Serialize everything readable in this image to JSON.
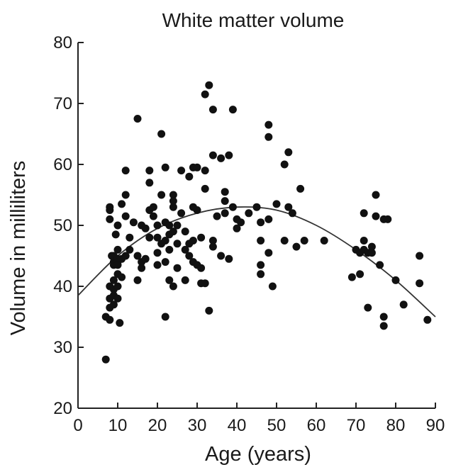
{
  "chart_data": {
    "type": "scatter",
    "title": "White matter volume",
    "xlabel": "Age (years)",
    "ylabel": "Volume in milliliters",
    "xlim": [
      0,
      90
    ],
    "ylim": [
      20,
      80
    ],
    "xticks": [
      "0",
      "10",
      "20",
      "30",
      "40",
      "50",
      "60",
      "70",
      "80",
      "90"
    ],
    "yticks": [
      "20",
      "30",
      "40",
      "50",
      "60",
      "70",
      "80"
    ],
    "grid": false,
    "colors": {
      "points": "#111111",
      "curve": "#333333",
      "axis": "#222222"
    },
    "trend_curve": {
      "type": "quadratic-fit",
      "points": [
        [
          0,
          38.5
        ],
        [
          10,
          45
        ],
        [
          20,
          49.5
        ],
        [
          30,
          52
        ],
        [
          40,
          53
        ],
        [
          50,
          52.5
        ],
        [
          60,
          50
        ],
        [
          70,
          46
        ],
        [
          80,
          41
        ],
        [
          90,
          35
        ]
      ]
    },
    "points": [
      [
        7,
        28
      ],
      [
        7,
        35
      ],
      [
        8,
        34.5
      ],
      [
        8,
        38
      ],
      [
        8,
        40
      ],
      [
        8,
        36.5
      ],
      [
        8,
        52.5
      ],
      [
        8,
        51
      ],
      [
        8,
        53
      ],
      [
        8.5,
        45
      ],
      [
        9,
        41
      ],
      [
        9,
        38.5
      ],
      [
        9,
        39.5
      ],
      [
        9,
        37
      ],
      [
        9,
        44
      ],
      [
        9,
        45
      ],
      [
        9,
        43.5
      ],
      [
        9.5,
        48.5
      ],
      [
        10,
        44.5
      ],
      [
        10,
        42
      ],
      [
        10,
        44
      ],
      [
        10,
        43.5
      ],
      [
        10,
        40
      ],
      [
        10,
        38
      ],
      [
        10,
        50
      ],
      [
        10,
        46
      ],
      [
        10.5,
        34
      ],
      [
        11,
        53.5
      ],
      [
        11,
        44.5
      ],
      [
        11,
        41.5
      ],
      [
        12,
        45
      ],
      [
        12,
        51.5
      ],
      [
        12,
        55
      ],
      [
        12,
        59
      ],
      [
        13,
        48
      ],
      [
        13,
        46
      ],
      [
        14,
        50.5
      ],
      [
        15,
        67.5
      ],
      [
        15,
        45
      ],
      [
        15,
        41
      ],
      [
        16,
        50
      ],
      [
        16,
        44
      ],
      [
        16,
        43
      ],
      [
        17,
        44.5
      ],
      [
        17,
        49.5
      ],
      [
        18,
        48
      ],
      [
        18,
        52.5
      ],
      [
        18,
        57
      ],
      [
        18,
        59
      ],
      [
        19,
        51.5
      ],
      [
        19,
        53
      ],
      [
        20,
        50
      ],
      [
        20,
        48
      ],
      [
        20,
        45.5
      ],
      [
        20,
        43.5
      ],
      [
        21,
        65
      ],
      [
        21,
        55
      ],
      [
        21,
        47
      ],
      [
        22,
        59.5
      ],
      [
        22,
        35
      ],
      [
        22,
        50.5
      ],
      [
        22,
        47.5
      ],
      [
        22,
        44
      ],
      [
        23,
        48.5
      ],
      [
        23,
        46
      ],
      [
        23,
        41
      ],
      [
        23,
        50
      ],
      [
        24,
        49
      ],
      [
        24,
        40
      ],
      [
        24,
        53
      ],
      [
        24,
        55
      ],
      [
        24,
        54
      ],
      [
        25,
        47
      ],
      [
        25,
        43
      ],
      [
        25,
        50
      ],
      [
        26,
        52
      ],
      [
        26,
        59
      ],
      [
        27,
        49
      ],
      [
        27,
        46
      ],
      [
        27,
        41
      ],
      [
        28,
        47
      ],
      [
        28,
        58
      ],
      [
        28,
        45
      ],
      [
        29,
        59.5
      ],
      [
        29,
        47.5
      ],
      [
        29,
        53
      ],
      [
        29,
        44
      ],
      [
        30,
        59.5
      ],
      [
        30,
        52.5
      ],
      [
        30,
        43.5
      ],
      [
        31,
        40.5
      ],
      [
        31,
        48
      ],
      [
        31,
        43
      ],
      [
        32,
        71.5
      ],
      [
        32,
        59
      ],
      [
        32,
        56
      ],
      [
        32,
        40.5
      ],
      [
        33,
        36
      ],
      [
        33,
        73
      ],
      [
        34,
        69
      ],
      [
        34,
        61.5
      ],
      [
        34,
        47.5
      ],
      [
        34,
        46.5
      ],
      [
        35,
        51.5
      ],
      [
        36,
        45
      ],
      [
        36,
        61
      ],
      [
        37,
        55.5
      ],
      [
        37,
        54
      ],
      [
        37,
        52
      ],
      [
        38,
        61.5
      ],
      [
        38,
        44.5
      ],
      [
        39,
        69
      ],
      [
        39,
        53
      ],
      [
        40,
        51
      ],
      [
        40,
        49.5
      ],
      [
        41,
        50.5
      ],
      [
        43,
        52
      ],
      [
        45,
        53
      ],
      [
        46,
        47.5
      ],
      [
        46,
        50.5
      ],
      [
        46,
        43.5
      ],
      [
        46,
        42
      ],
      [
        48,
        66.5
      ],
      [
        48,
        64.5
      ],
      [
        48,
        51
      ],
      [
        48,
        45.5
      ],
      [
        49,
        40
      ],
      [
        50,
        53.5
      ],
      [
        52,
        47.5
      ],
      [
        52,
        60
      ],
      [
        53,
        62
      ],
      [
        53,
        53
      ],
      [
        54,
        52
      ],
      [
        55,
        46.5
      ],
      [
        56,
        56
      ],
      [
        57,
        47.5
      ],
      [
        62,
        47.5
      ],
      [
        69,
        41.5
      ],
      [
        70,
        46
      ],
      [
        71,
        45.5
      ],
      [
        71,
        42
      ],
      [
        72,
        52
      ],
      [
        72,
        47.5
      ],
      [
        72,
        46
      ],
      [
        73,
        45.5
      ],
      [
        73,
        36.5
      ],
      [
        74,
        46.5
      ],
      [
        74,
        45.5
      ],
      [
        75,
        55
      ],
      [
        75,
        51.5
      ],
      [
        76,
        43.5
      ],
      [
        77,
        51
      ],
      [
        77,
        35
      ],
      [
        77,
        33.5
      ],
      [
        78,
        51
      ],
      [
        80,
        41
      ],
      [
        82,
        37
      ],
      [
        86,
        45
      ],
      [
        86,
        40.5
      ],
      [
        88,
        34.5
      ]
    ]
  }
}
